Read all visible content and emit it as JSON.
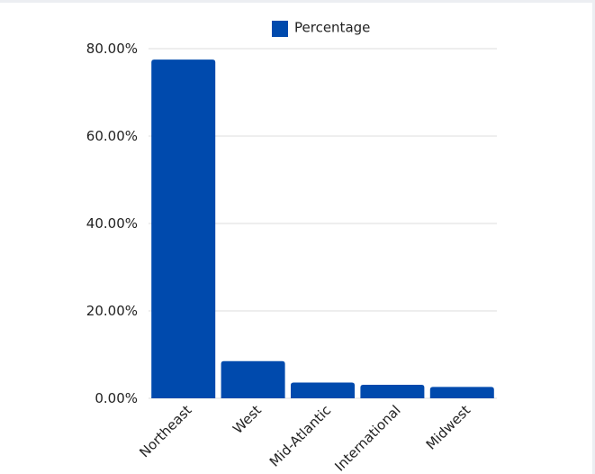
{
  "chart_data": {
    "type": "bar",
    "categories": [
      "Northeast",
      "West",
      "Mid-Atlantic",
      "International",
      "Midwest"
    ],
    "series": [
      {
        "name": "Percentage",
        "values": [
          77.5,
          8.5,
          3.6,
          3.1,
          2.6
        ]
      }
    ],
    "ylim": [
      0,
      80
    ],
    "yticks": [
      {
        "value": 0,
        "label": "0.00%"
      },
      {
        "value": 20,
        "label": "20.00%"
      },
      {
        "value": 40,
        "label": "40.00%"
      },
      {
        "value": 60,
        "label": "60.00%"
      },
      {
        "value": 80,
        "label": "80.00%"
      }
    ],
    "grid": true,
    "legend": "top",
    "bar_color": "#004aad"
  }
}
